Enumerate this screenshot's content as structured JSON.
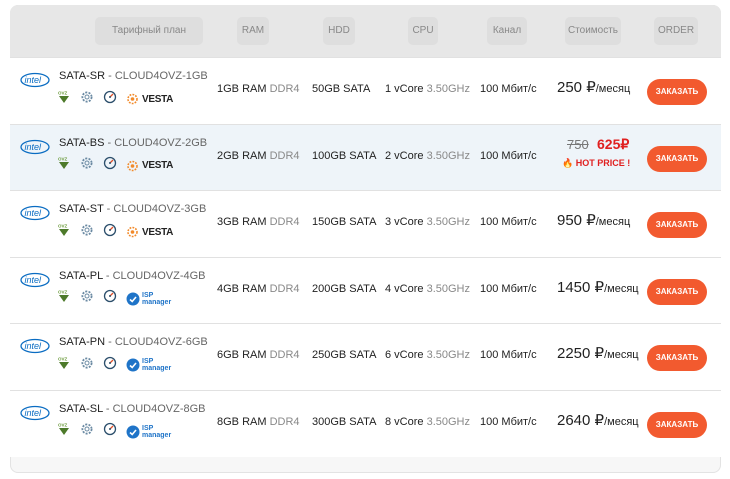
{
  "header": {
    "plan": "Тарифный план",
    "ram": "RAM",
    "hdd": "HDD",
    "cpu": "CPU",
    "channel": "Канал",
    "cost": "Стоимость",
    "order": "ORDER"
  },
  "icons": {
    "brand": "intel-logo",
    "os": "ovz-icon",
    "settings": "gear-icon",
    "speed": "gauge-icon",
    "panels": [
      "VESTA",
      "ISP manager"
    ]
  },
  "accent": "#f25a2f",
  "rows": [
    {
      "name": "SATA-SR",
      "sep": " - ",
      "code": "CLOUD4OVZ-1GB",
      "panel": "VESTA",
      "ram": "1GB RAM",
      "ram_type": "DDR4",
      "hdd": "50GB SATA",
      "cpu": "1 vCore",
      "cpu_freq": "3.50GHz",
      "channel": "100 Мбит/с",
      "price": "250 ₽",
      "per": "/месяц",
      "order": "Заказать"
    },
    {
      "name": "SATA-BS",
      "sep": " - ",
      "code": "CLOUD4OVZ-2GB",
      "panel": "VESTA",
      "ram": "2GB RAM",
      "ram_type": "DDR4",
      "hdd": "100GB SATA",
      "cpu": "2 vCore",
      "cpu_freq": "3.50GHz",
      "channel": "100 Мбит/с",
      "old_price": "750",
      "new_price": "625₽",
      "hot": "HOT PRICE !",
      "order": "Заказать"
    },
    {
      "name": "SATA-ST",
      "sep": " - ",
      "code": "CLOUD4OVZ-3GB",
      "panel": "VESTA",
      "ram": "3GB RAM",
      "ram_type": "DDR4",
      "hdd": "150GB SATA",
      "cpu": "3 vCore",
      "cpu_freq": "3.50GHz",
      "channel": "100 Мбит/с",
      "price": "950 ₽",
      "per": "/месяц",
      "order": "Заказать"
    },
    {
      "name": "SATA-PL",
      "sep": " - ",
      "code": "CLOUD4OVZ-4GB",
      "panel": "ISP",
      "ram": "4GB RAM",
      "ram_type": "DDR4",
      "hdd": "200GB SATA",
      "cpu": "4 vCore",
      "cpu_freq": "3.50GHz",
      "channel": "100 Мбит/с",
      "price": "1450 ₽",
      "per": "/месяц",
      "order": "Заказать"
    },
    {
      "name": "SATA-PN",
      "sep": " - ",
      "code": "CLOUD4OVZ-6GB",
      "panel": "ISP",
      "ram": "6GB RAM",
      "ram_type": "DDR4",
      "hdd": "250GB SATA",
      "cpu": "6 vCore",
      "cpu_freq": "3.50GHz",
      "channel": "100 Мбит/с",
      "price": "2250 ₽",
      "per": "/месяц",
      "order": "Заказать"
    },
    {
      "name": "SATA-SL",
      "sep": " - ",
      "code": "CLOUD4OVZ-8GB",
      "panel": "ISP",
      "ram": "8GB RAM",
      "ram_type": "DDR4",
      "hdd": "300GB SATA",
      "cpu": "8 vCore",
      "cpu_freq": "3.50GHz",
      "channel": "100 Мбит/с",
      "price": "2640 ₽",
      "per": "/месяц",
      "order": "Заказать"
    }
  ]
}
